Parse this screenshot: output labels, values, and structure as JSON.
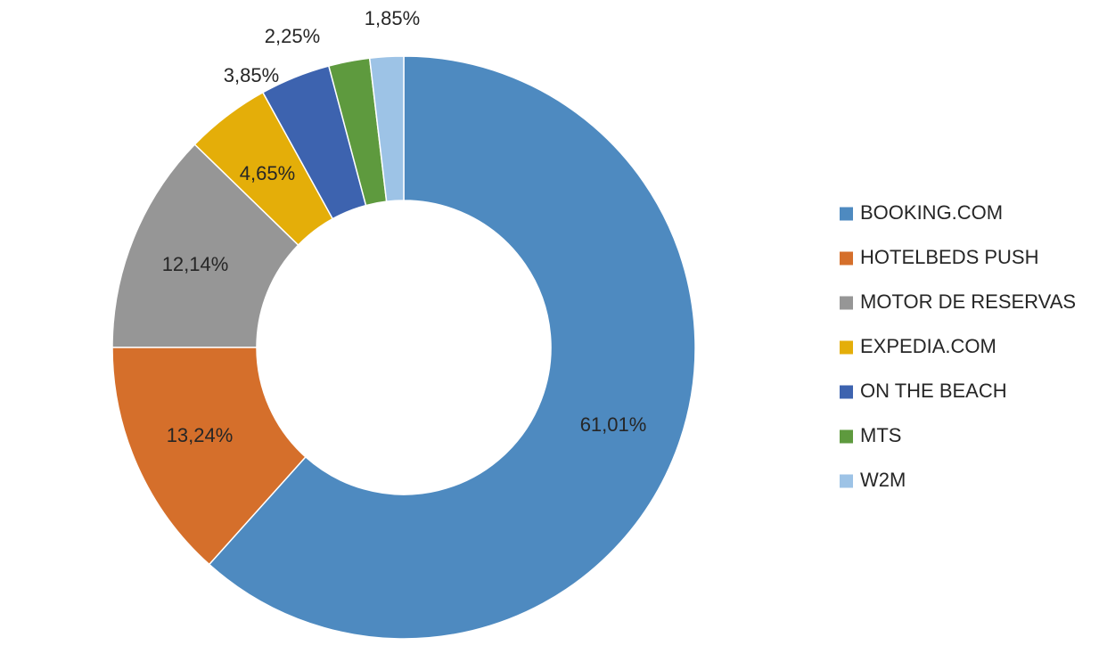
{
  "chart_data": {
    "type": "pie",
    "style": "donut",
    "legend_position": "right",
    "series": [
      {
        "name": "BOOKING.COM",
        "value": 61.01,
        "label": "61,01%",
        "color": "#4E8AC0"
      },
      {
        "name": "HOTELBEDS PUSH",
        "value": 13.24,
        "label": "13,24%",
        "color": "#D56F2B"
      },
      {
        "name": "MOTOR DE RESERVAS",
        "value": 12.14,
        "label": "12,14%",
        "color": "#969696"
      },
      {
        "name": "EXPEDIA.COM",
        "value": 4.65,
        "label": "4,65%",
        "color": "#E4AE09"
      },
      {
        "name": "ON THE BEACH",
        "value": 3.85,
        "label": "3,85%",
        "color": "#3D63AF"
      },
      {
        "name": "MTS",
        "value": 2.25,
        "label": "2,25%",
        "color": "#5E9A3E"
      },
      {
        "name": "W2M",
        "value": 1.85,
        "label": "1,85%",
        "color": "#9DC3E6"
      }
    ]
  }
}
